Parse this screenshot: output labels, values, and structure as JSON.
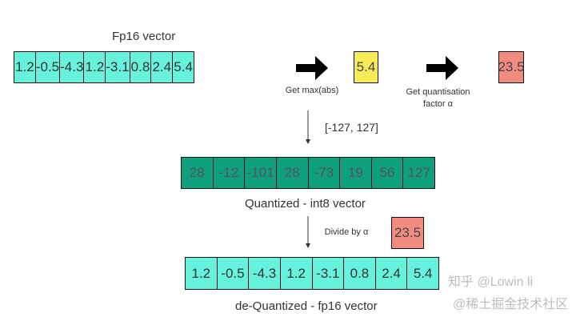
{
  "fp16_vector": {
    "title": "Fp16 vector",
    "values": [
      "1.2",
      "-0.5",
      "-4.3",
      "1.2",
      "-3.1",
      "0.8",
      "2.4",
      "5.4"
    ],
    "color": "#66f2dc"
  },
  "max_step": {
    "label": "Get max(abs)",
    "value": "5.4",
    "color": "#f7ec58"
  },
  "factor_step": {
    "label_line1": "Get quantisation",
    "label_line2": "factor α",
    "value": "23.5",
    "color": "#f28b80"
  },
  "range_label": "[-127, 127]",
  "int8_vector": {
    "title": "Quantized - int8 vector",
    "values": [
      "28",
      "-12",
      "-101",
      "28",
      "-73",
      "19",
      "56",
      "127"
    ],
    "color": "#0e9f7c"
  },
  "divide_step": {
    "label": "Divide by α",
    "value": "23.5"
  },
  "dequant_vector": {
    "title": "de-Quantized - fp16 vector",
    "values": [
      "1.2",
      "-0.5",
      "-4.3",
      "1.2",
      "-3.1",
      "0.8",
      "2.4",
      "5.4"
    ]
  },
  "watermark": {
    "line1": "知乎 @Lowin li",
    "line2": "@稀土掘金技术社区"
  }
}
